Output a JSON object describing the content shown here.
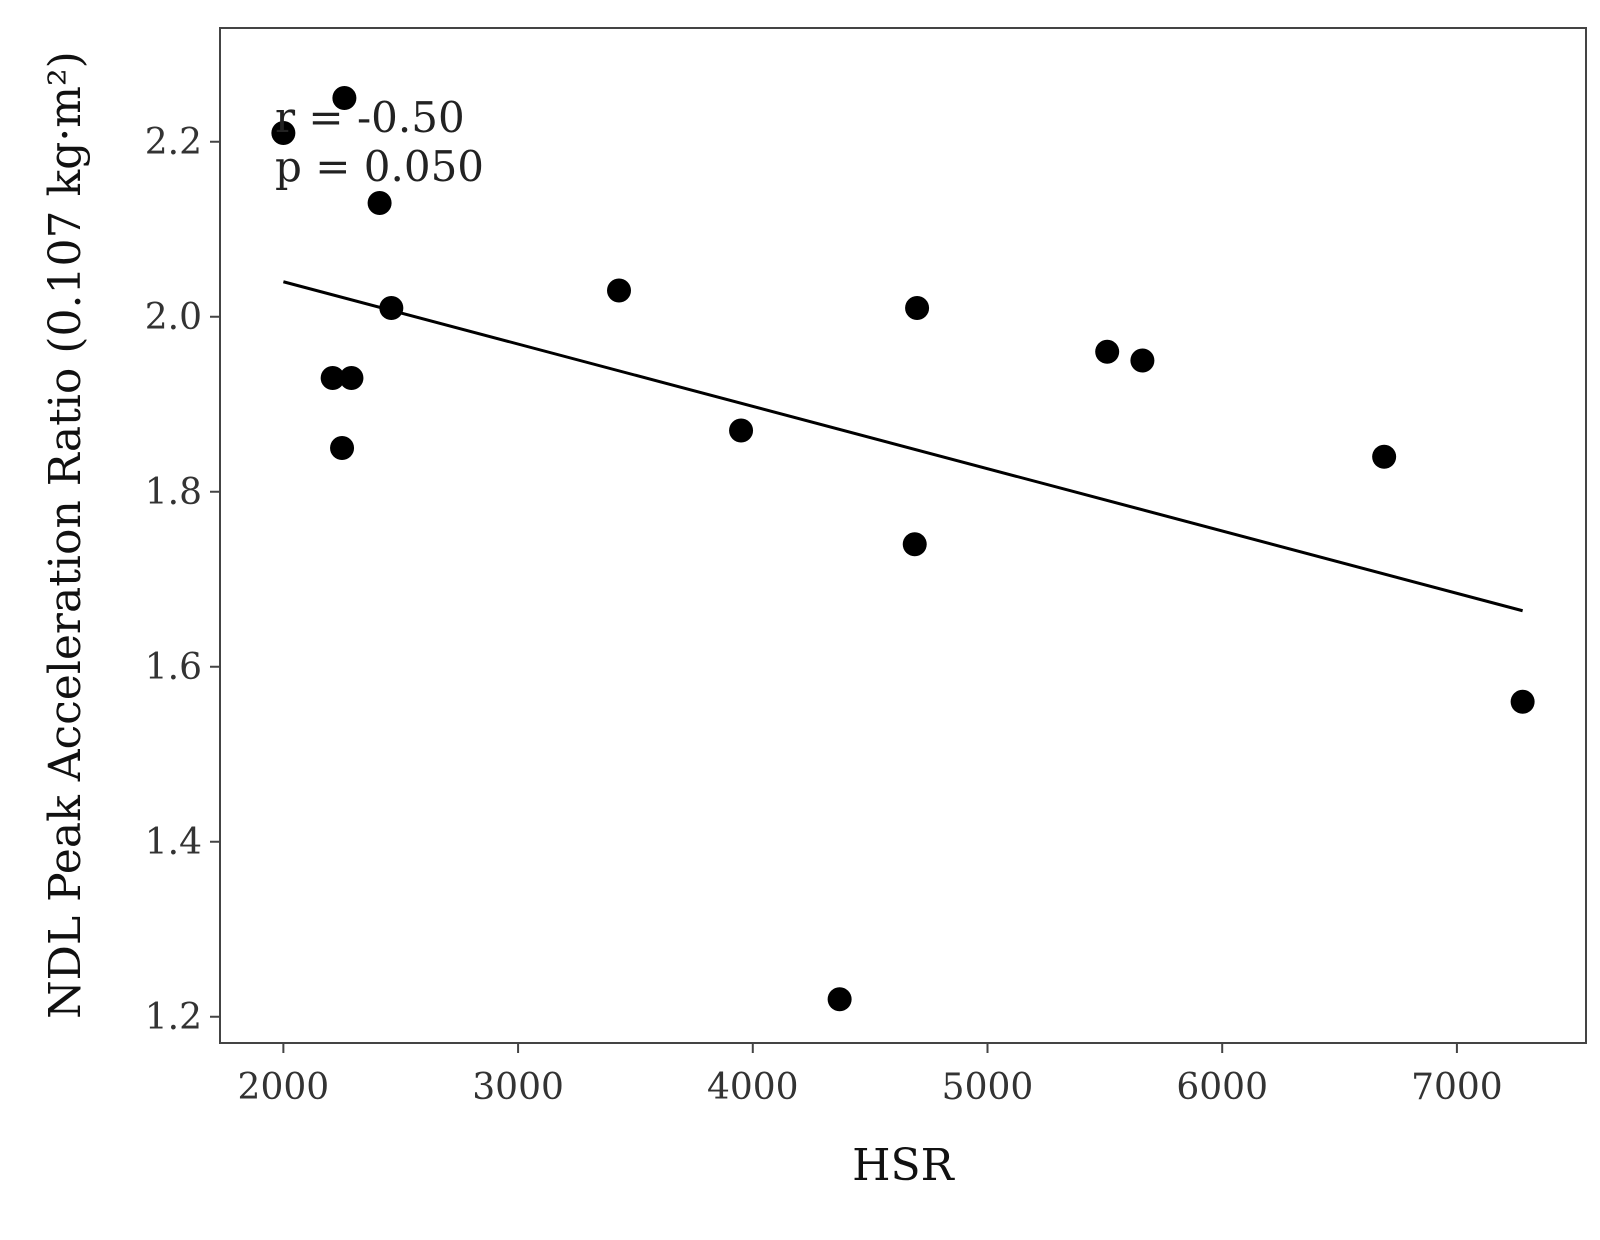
{
  "chart_data": {
    "type": "scatter",
    "title": "",
    "xlabel": "HSR",
    "ylabel": "NDL Peak Acceleration Ratio (0.107 kg·m²)",
    "xlim": [
      1730,
      7550
    ],
    "ylim": [
      1.17,
      2.33
    ],
    "xticks": [
      2000,
      3000,
      4000,
      5000,
      6000,
      7000
    ],
    "yticks": [
      1.2,
      1.4,
      1.6,
      1.8,
      2.0,
      2.2
    ],
    "xtick_labels": [
      "2000",
      "3000",
      "4000",
      "5000",
      "6000",
      "7000"
    ],
    "ytick_labels": [
      "1.2",
      "1.4",
      "1.6",
      "1.8",
      "2.0",
      "2.2"
    ],
    "grid": false,
    "points": [
      {
        "x": 2000,
        "y": 2.21
      },
      {
        "x": 2260,
        "y": 2.25
      },
      {
        "x": 2410,
        "y": 2.13
      },
      {
        "x": 2460,
        "y": 2.01
      },
      {
        "x": 2210,
        "y": 1.93
      },
      {
        "x": 2290,
        "y": 1.93
      },
      {
        "x": 2250,
        "y": 1.85
      },
      {
        "x": 3430,
        "y": 2.03
      },
      {
        "x": 3950,
        "y": 1.87
      },
      {
        "x": 4370,
        "y": 1.22
      },
      {
        "x": 4700,
        "y": 2.01
      },
      {
        "x": 4690,
        "y": 1.74
      },
      {
        "x": 5510,
        "y": 1.96
      },
      {
        "x": 5660,
        "y": 1.95
      },
      {
        "x": 6690,
        "y": 1.84
      },
      {
        "x": 7280,
        "y": 1.56
      }
    ],
    "fit_line": {
      "x": [
        2000,
        7280
      ],
      "y": [
        2.04,
        1.664
      ]
    },
    "annotations": [
      "r = -0.50",
      "p = 0.050"
    ]
  }
}
